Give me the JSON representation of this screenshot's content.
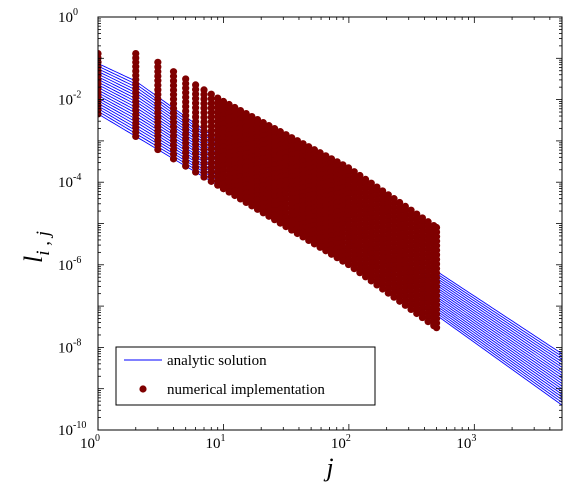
{
  "chart_data": {
    "type": "line",
    "xlabel": "j",
    "ylabel": "l",
    "ylabel_subscript": "i , j",
    "xscale": "log",
    "yscale": "log",
    "xlim": [
      1,
      5000
    ],
    "ylim": [
      1e-10,
      1
    ],
    "grid": false,
    "legend_position": "bottom-left",
    "x_ticks": [
      {
        "base": "10",
        "exp": "0",
        "value": 1
      },
      {
        "base": "10",
        "exp": "1",
        "value": 10
      },
      {
        "base": "10",
        "exp": "2",
        "value": 100
      },
      {
        "base": "10",
        "exp": "3",
        "value": 1000
      }
    ],
    "y_ticks": [
      {
        "base": "10",
        "exp": "0",
        "value": 1
      },
      {
        "base": "10",
        "exp": "-2",
        "value": 0.01
      },
      {
        "base": "10",
        "exp": "-4",
        "value": 0.0001
      },
      {
        "base": "10",
        "exp": "-6",
        "value": 1e-06
      },
      {
        "base": "10",
        "exp": "-8",
        "value": 1e-08
      },
      {
        "base": "10",
        "exp": "-10",
        "value": 1e-10
      }
    ],
    "series": [
      {
        "name": "analytic solution",
        "style": "line",
        "color": "#0000ff",
        "curve_count": 20,
        "first_curve_points": [
          [
            1,
            0.075
          ],
          [
            2,
            0.028
          ],
          [
            10,
            0.00085
          ],
          [
            100,
            1.2e-05
          ],
          [
            500,
            7e-07
          ],
          [
            5000,
            7e-09
          ]
        ],
        "last_curve_points": [
          [
            1,
            0.0045
          ],
          [
            10,
            7e-05
          ],
          [
            100,
            1e-06
          ],
          [
            500,
            6e-08
          ],
          [
            5000,
            4e-10
          ]
        ]
      },
      {
        "name": "numerical implementation",
        "style": "markers",
        "color": "#7f0000",
        "x_range": [
          1,
          500
        ],
        "top_envelope_points": [
          [
            1,
            0.13
          ],
          [
            2,
            0.13
          ],
          [
            3,
            0.08
          ],
          [
            10,
            0.009
          ],
          [
            100,
            0.00022
          ],
          [
            500,
            8e-06
          ]
        ],
        "bottom_envelope_points": [
          [
            1,
            0.0045
          ],
          [
            10,
            7e-05
          ],
          [
            100,
            1e-06
          ],
          [
            500,
            3e-08
          ]
        ]
      }
    ]
  },
  "legend": {
    "items": [
      {
        "label": "analytic solution",
        "type": "line",
        "color": "#0000ff"
      },
      {
        "label": "numerical implementation",
        "type": "marker",
        "color": "#7f0000"
      }
    ]
  },
  "colors": {
    "analytic": "#0000ff",
    "numerical": "#7f0000"
  }
}
